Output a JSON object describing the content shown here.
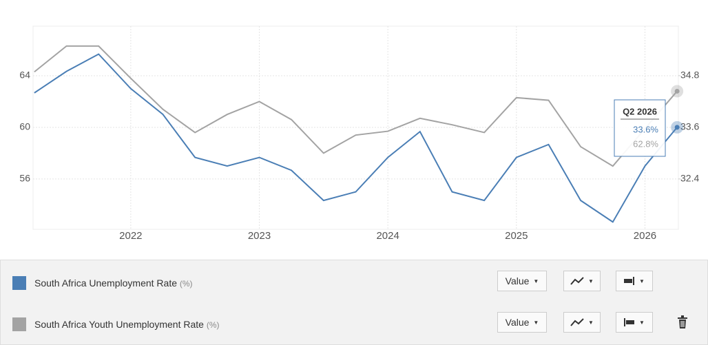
{
  "chart_data": {
    "type": "line",
    "x": [
      2021.25,
      2021.5,
      2021.75,
      2022,
      2022.25,
      2022.5,
      2022.75,
      2023,
      2023.25,
      2023.5,
      2023.75,
      2024,
      2024.25,
      2024.5,
      2024.75,
      2025,
      2025.25,
      2025.5,
      2025.75,
      2026,
      2026.25
    ],
    "xlim": [
      2021.24,
      2026.26
    ],
    "xticks": [
      2022,
      2023,
      2024,
      2025,
      2026
    ],
    "ylim": [
      52.1,
      67.84
    ],
    "yticks": [
      56,
      60,
      64
    ],
    "y2lim": [
      31.23,
      35.95
    ],
    "y2ticks": [
      32.4,
      33.6,
      34.8
    ],
    "grid": true,
    "series": [
      {
        "name": "South Africa Unemployment Rate",
        "unit": "(%)",
        "color": "#4a7eb5",
        "axis": "y2",
        "mode": "Value",
        "values": [
          34.4,
          34.9,
          35.3,
          34.5,
          33.9,
          32.9,
          32.7,
          32.9,
          32.6,
          31.9,
          32.1,
          32.9,
          33.5,
          32.1,
          31.9,
          32.9,
          33.2,
          31.9,
          31.4,
          32.7,
          33.6
        ]
      },
      {
        "name": "South Africa Youth Unemployment Rate",
        "unit": "(%)",
        "color": "#a3a3a3",
        "axis": "y",
        "mode": "Value",
        "values": [
          64.3,
          66.3,
          66.3,
          63.8,
          61.4,
          59.6,
          61.0,
          62.0,
          60.6,
          58.0,
          59.4,
          59.7,
          60.7,
          60.2,
          59.6,
          62.3,
          62.1,
          58.5,
          57.0,
          59.9,
          62.8
        ]
      }
    ],
    "tooltip": {
      "title": "Q2 2026",
      "labels": [
        "33.6%",
        "62.8%"
      ]
    }
  }
}
